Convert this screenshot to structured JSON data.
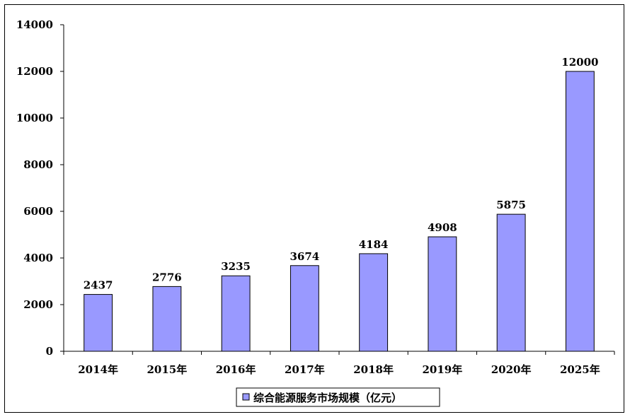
{
  "chart_data": {
    "type": "bar",
    "categories": [
      "2014年",
      "2015年",
      "2016年",
      "2017年",
      "2018年",
      "2019年",
      "2020年",
      "2025年"
    ],
    "series": [
      {
        "name": "综合能源服务市场规模（亿元）",
        "values": [
          2437,
          2776,
          3235,
          3674,
          4184,
          4908,
          5875,
          12000
        ],
        "color": "#9999ff"
      }
    ],
    "y_ticks": [
      "0",
      "2000",
      "4000",
      "6000",
      "8000",
      "10000",
      "12000",
      "14000"
    ],
    "ylim": [
      0,
      14000
    ],
    "grid": false,
    "legend_position": "bottom-center",
    "bar_border_color": "#000000"
  }
}
